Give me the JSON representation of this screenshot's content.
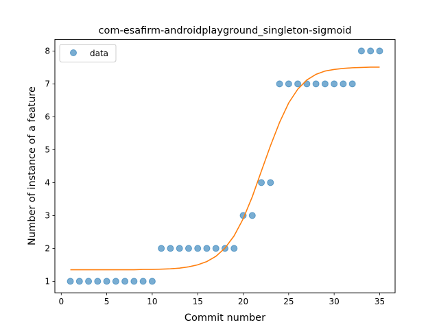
{
  "chart_data": {
    "type": "scatter",
    "title": "com-esafirm-androidplayground_singleton-sigmoid",
    "xlabel": "Commit number",
    "ylabel": "Number of instance of a feature",
    "xlim": [
      -0.7,
      36.7
    ],
    "ylim": [
      0.65,
      8.35
    ],
    "xticks": [
      0,
      5,
      10,
      15,
      20,
      25,
      30,
      35
    ],
    "yticks": [
      1,
      2,
      3,
      4,
      5,
      6,
      7,
      8
    ],
    "grid": false,
    "legend": {
      "position": "top-left",
      "entries": [
        "data"
      ]
    },
    "series": [
      {
        "name": "data",
        "kind": "points",
        "color": "#1f77b4",
        "x": [
          1,
          2,
          3,
          4,
          5,
          6,
          7,
          8,
          9,
          10,
          11,
          12,
          13,
          14,
          15,
          16,
          17,
          18,
          19,
          20,
          21,
          22,
          23,
          24,
          25,
          26,
          27,
          28,
          29,
          30,
          31,
          32,
          33,
          34,
          35
        ],
        "y": [
          1,
          1,
          1,
          1,
          1,
          1,
          1,
          1,
          1,
          1,
          2,
          2,
          2,
          2,
          2,
          2,
          2,
          2,
          2,
          3,
          3,
          4,
          4,
          7,
          7,
          7,
          7,
          7,
          7,
          7,
          7,
          7,
          8,
          8,
          8
        ]
      },
      {
        "kind": "fit",
        "color": "#ff7f0e",
        "x": [
          1,
          2,
          3,
          4,
          5,
          6,
          7,
          8,
          9,
          10,
          11,
          12,
          13,
          14,
          15,
          16,
          17,
          18,
          19,
          20,
          21,
          22,
          23,
          24,
          25,
          26,
          27,
          28,
          29,
          30,
          31,
          32,
          33,
          34,
          35
        ],
        "y": [
          1.35,
          1.35,
          1.35,
          1.35,
          1.35,
          1.35,
          1.35,
          1.35,
          1.36,
          1.36,
          1.37,
          1.38,
          1.4,
          1.44,
          1.5,
          1.6,
          1.76,
          2.01,
          2.38,
          2.9,
          3.57,
          4.35,
          5.12,
          5.83,
          6.42,
          6.84,
          7.12,
          7.29,
          7.39,
          7.44,
          7.47,
          7.49,
          7.5,
          7.51,
          7.51
        ]
      }
    ]
  }
}
